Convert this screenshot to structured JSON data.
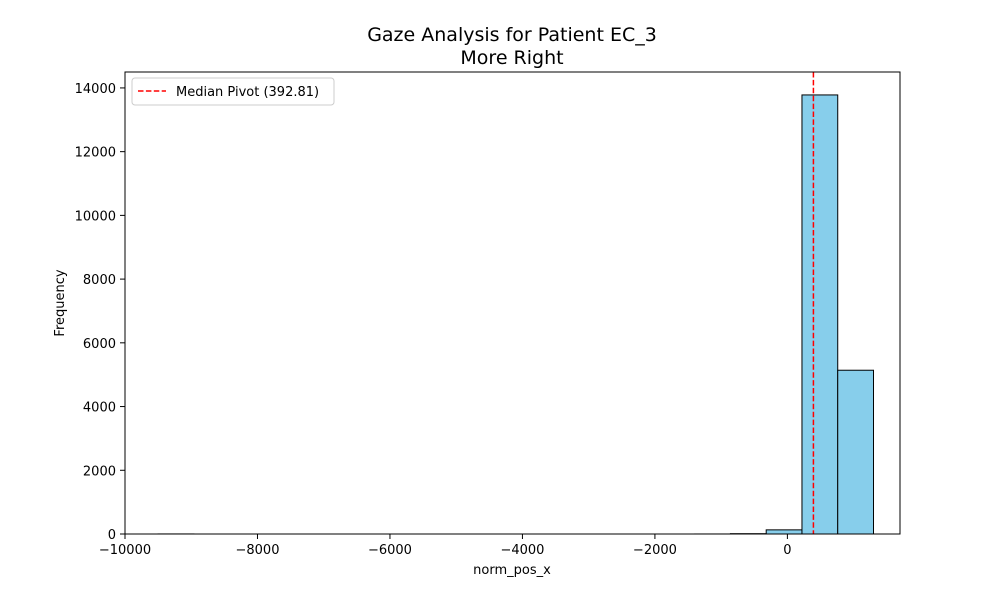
{
  "chart_data": {
    "type": "bar",
    "title": "Gaze Analysis for Patient EC_3",
    "subtitle": "More Right",
    "xlabel": "norm_pos_x",
    "ylabel": "Frequency",
    "xlim": [
      -10000,
      1700
    ],
    "ylim": [
      0,
      14500
    ],
    "xticks": [
      -10000,
      -8000,
      -6000,
      -4000,
      -2000,
      0
    ],
    "xtick_labels": [
      "−10000",
      "−8000",
      "−6000",
      "−4000",
      "−2000",
      "0"
    ],
    "yticks": [
      0,
      2000,
      4000,
      6000,
      8000,
      10000,
      12000,
      14000
    ],
    "ytick_labels": [
      "0",
      "2000",
      "4000",
      "6000",
      "8000",
      "10000",
      "12000",
      "14000"
    ],
    "bins": [
      [
        -9500,
        -8960
      ],
      [
        -8960,
        -8420
      ],
      [
        -8420,
        -7880
      ],
      [
        -7880,
        -7340
      ],
      [
        -7340,
        -6800
      ],
      [
        -6800,
        -6260
      ],
      [
        -6260,
        -5720
      ],
      [
        -5720,
        -5180
      ],
      [
        -5180,
        -4640
      ],
      [
        -4640,
        -4100
      ],
      [
        -4100,
        -3560
      ],
      [
        -3560,
        -3020
      ],
      [
        -3020,
        -2480
      ],
      [
        -2480,
        -1940
      ],
      [
        -1940,
        -1400
      ],
      [
        -1400,
        -860
      ],
      [
        -860,
        -320
      ],
      [
        -320,
        220
      ],
      [
        220,
        760
      ],
      [
        760,
        1300
      ]
    ],
    "values": [
      2,
      0,
      0,
      0,
      0,
      0,
      0,
      0,
      0,
      0,
      0,
      0,
      0,
      0,
      0,
      1,
      10,
      130,
      13780,
      5140
    ],
    "bar_color": "#87ceeb",
    "edge_color": "#000000",
    "grid": false,
    "median_line": {
      "x": 392.81,
      "label": "Median Pivot (392.81)",
      "color": "#ff0000",
      "style": "dashed"
    },
    "legend_position": "top-left"
  }
}
